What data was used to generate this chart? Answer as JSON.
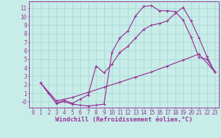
{
  "xlabel": "Windchill (Refroidissement éolien,°C)",
  "bg_color": "#c8ece8",
  "grid_color": "#a0d4d0",
  "line_color": "#993399",
  "xlim": [
    -0.5,
    23.5
  ],
  "ylim": [
    -0.7,
    11.8
  ],
  "xticks": [
    0,
    1,
    2,
    3,
    4,
    5,
    6,
    7,
    8,
    9,
    10,
    11,
    12,
    13,
    14,
    15,
    16,
    17,
    18,
    19,
    20,
    21,
    22,
    23
  ],
  "yticks": [
    0,
    1,
    2,
    3,
    4,
    5,
    6,
    7,
    8,
    9,
    10,
    11
  ],
  "ytick_labels": [
    "-0",
    "1",
    "2",
    "3",
    "4",
    "5",
    "6",
    "7",
    "8",
    "9",
    "10",
    "11"
  ],
  "line1_x": [
    1,
    2,
    3,
    4,
    5,
    6,
    7,
    8,
    9,
    10,
    11,
    12,
    13,
    14,
    15,
    16,
    17,
    18,
    19,
    20,
    21,
    22,
    23
  ],
  "line1_y": [
    2.2,
    1.0,
    -0.2,
    0.0,
    -0.3,
    -0.4,
    -0.5,
    -0.4,
    -0.3,
    5.8,
    7.5,
    8.3,
    10.1,
    11.2,
    11.3,
    10.7,
    10.7,
    10.6,
    9.6,
    7.6,
    5.2,
    5.0,
    3.5
  ],
  "line2_x": [
    1,
    3,
    4,
    5,
    6,
    7,
    8,
    9,
    10,
    11,
    12,
    13,
    14,
    15,
    16,
    17,
    18,
    19,
    20,
    21,
    22,
    23
  ],
  "line2_y": [
    2.2,
    -0.2,
    0.2,
    -0.2,
    0.3,
    0.8,
    4.2,
    3.4,
    4.4,
    5.8,
    6.5,
    7.5,
    8.5,
    9.0,
    9.2,
    9.5,
    10.4,
    11.1,
    9.5,
    7.5,
    5.3,
    3.5
  ],
  "line3_x": [
    1,
    3,
    5,
    7,
    9,
    11,
    13,
    15,
    17,
    19,
    21,
    23
  ],
  "line3_y": [
    2.2,
    0.1,
    0.5,
    1.1,
    1.7,
    2.3,
    2.9,
    3.5,
    4.2,
    4.9,
    5.6,
    3.5
  ],
  "tick_fontsize": 5.5,
  "xlabel_fontsize": 6.5
}
